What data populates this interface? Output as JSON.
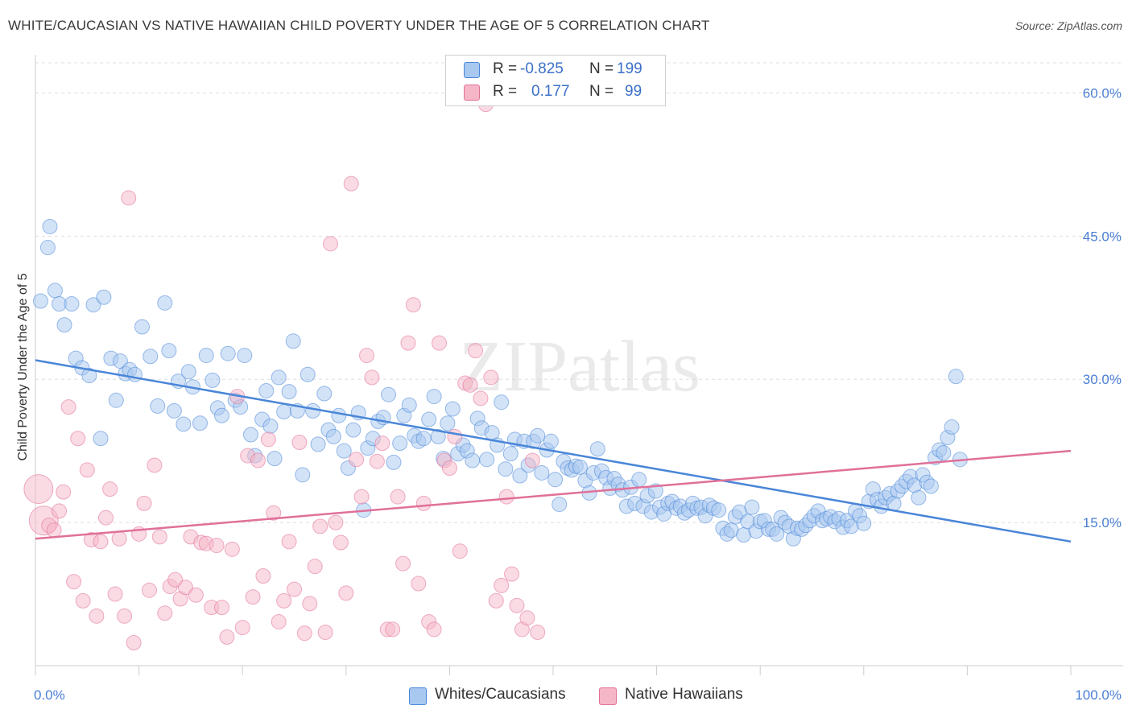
{
  "title": "WHITE/CAUCASIAN VS NATIVE HAWAIIAN CHILD POVERTY UNDER THE AGE OF 5 CORRELATION CHART",
  "source": "Source: ZipAtlas.com",
  "watermark": "ZIPatlas",
  "legend": {
    "rows": [
      {
        "r_label": "R =",
        "r_value": "-0.825",
        "n_label": "N =",
        "n_value": "199",
        "color": "#a8c8f0"
      },
      {
        "r_label": "R =",
        "r_value": "0.177",
        "n_label": "N =",
        "n_value": "99",
        "color": "#f5b6c8"
      }
    ]
  },
  "bottom_legend": [
    {
      "label": "Whites/Caucasians",
      "color": "#a8c8f0"
    },
    {
      "label": "Native Hawaiians",
      "color": "#f5b6c8"
    }
  ],
  "chart_data": {
    "type": "scatter",
    "title": "WHITE/CAUCASIAN VS NATIVE HAWAIIAN CHILD POVERTY UNDER THE AGE OF 5 CORRELATION CHART",
    "xlabel": "",
    "ylabel": "Child Poverty Under the Age of 5",
    "xlim": [
      0,
      100
    ],
    "ylim": [
      0,
      64
    ],
    "x_tick_labels": [
      "0.0%",
      "100.0%"
    ],
    "y_ticks": [
      15,
      30,
      45,
      60
    ],
    "y_tick_labels": [
      "15.0%",
      "30.0%",
      "45.0%",
      "60.0%"
    ],
    "grid": true,
    "series": [
      {
        "name": "Whites/Caucasians",
        "color": "#4a86d8",
        "fill": "#a8c8f0",
        "trend": {
          "x": [
            0,
            100
          ],
          "y": [
            32.0,
            13.0
          ]
        },
        "points": [
          [
            0.5,
            38.2
          ],
          [
            1.2,
            43.8
          ],
          [
            1.4,
            46.0
          ],
          [
            1.9,
            39.3
          ],
          [
            2.3,
            37.9
          ],
          [
            2.8,
            35.7
          ],
          [
            3.5,
            37.9
          ],
          [
            3.9,
            32.2
          ],
          [
            4.5,
            31.2
          ],
          [
            5.2,
            30.4
          ],
          [
            5.6,
            37.8
          ],
          [
            6.3,
            23.8
          ],
          [
            6.6,
            38.6
          ],
          [
            7.3,
            32.2
          ],
          [
            7.8,
            27.8
          ],
          [
            8.2,
            31.9
          ],
          [
            8.7,
            30.6
          ],
          [
            9.1,
            31.0
          ],
          [
            9.6,
            30.5
          ],
          [
            10.3,
            35.5
          ],
          [
            11.1,
            32.4
          ],
          [
            11.8,
            27.2
          ],
          [
            12.5,
            38.0
          ],
          [
            12.9,
            33.0
          ],
          [
            13.4,
            26.7
          ],
          [
            13.8,
            29.8
          ],
          [
            14.3,
            25.3
          ],
          [
            14.8,
            30.8
          ],
          [
            15.2,
            29.2
          ],
          [
            15.9,
            25.4
          ],
          [
            16.5,
            32.5
          ],
          [
            17.1,
            29.9
          ],
          [
            17.6,
            27.0
          ],
          [
            18.0,
            26.2
          ],
          [
            18.6,
            32.7
          ],
          [
            19.3,
            27.8
          ],
          [
            19.8,
            27.1
          ],
          [
            20.2,
            32.5
          ],
          [
            20.8,
            24.2
          ],
          [
            21.2,
            22.0
          ],
          [
            21.9,
            25.8
          ],
          [
            22.3,
            28.8
          ],
          [
            22.7,
            25.1
          ],
          [
            23.1,
            21.7
          ],
          [
            23.5,
            30.2
          ],
          [
            24.0,
            26.6
          ],
          [
            24.5,
            28.7
          ],
          [
            24.9,
            34.0
          ],
          [
            25.3,
            26.7
          ],
          [
            25.8,
            20.0
          ],
          [
            26.3,
            30.5
          ],
          [
            26.8,
            26.7
          ],
          [
            27.3,
            23.2
          ],
          [
            27.9,
            28.5
          ],
          [
            28.3,
            24.7
          ],
          [
            28.8,
            24.0
          ],
          [
            29.3,
            26.2
          ],
          [
            29.8,
            22.5
          ],
          [
            30.2,
            20.7
          ],
          [
            30.7,
            24.7
          ],
          [
            31.2,
            26.5
          ],
          [
            31.7,
            16.3
          ],
          [
            32.1,
            22.8
          ],
          [
            32.6,
            23.8
          ],
          [
            33.1,
            25.6
          ],
          [
            33.6,
            26.0
          ],
          [
            34.1,
            28.4
          ],
          [
            34.6,
            21.3
          ],
          [
            35.2,
            23.3
          ],
          [
            35.6,
            26.2
          ],
          [
            36.1,
            27.3
          ],
          [
            36.6,
            24.1
          ],
          [
            37.0,
            23.5
          ],
          [
            37.5,
            23.8
          ],
          [
            38.0,
            25.8
          ],
          [
            38.5,
            28.2
          ],
          [
            38.9,
            24.0
          ],
          [
            39.4,
            21.7
          ],
          [
            39.8,
            25.4
          ],
          [
            40.3,
            26.9
          ],
          [
            40.8,
            22.2
          ],
          [
            41.3,
            23.1
          ],
          [
            41.7,
            22.5
          ],
          [
            42.2,
            21.5
          ],
          [
            42.7,
            25.9
          ],
          [
            43.1,
            24.9
          ],
          [
            43.6,
            21.6
          ],
          [
            44.1,
            24.4
          ],
          [
            44.6,
            23.1
          ],
          [
            45.0,
            27.6
          ],
          [
            45.4,
            20.6
          ],
          [
            45.9,
            22.2
          ],
          [
            46.3,
            23.7
          ],
          [
            46.8,
            19.9
          ],
          [
            47.2,
            23.5
          ],
          [
            47.6,
            21.0
          ],
          [
            48.1,
            23.5
          ],
          [
            48.5,
            24.1
          ],
          [
            48.9,
            20.2
          ],
          [
            49.4,
            22.6
          ],
          [
            49.8,
            23.5
          ],
          [
            50.2,
            19.5
          ],
          [
            50.6,
            16.9
          ],
          [
            51.0,
            21.4
          ],
          [
            51.4,
            20.7
          ],
          [
            51.8,
            20.5
          ],
          [
            52.2,
            20.9
          ],
          [
            52.6,
            20.8
          ],
          [
            53.1,
            19.4
          ],
          [
            53.5,
            18.1
          ],
          [
            53.9,
            20.2
          ],
          [
            54.3,
            22.7
          ],
          [
            54.7,
            20.4
          ],
          [
            55.1,
            19.7
          ],
          [
            55.5,
            18.6
          ],
          [
            55.9,
            19.6
          ],
          [
            56.3,
            19.0
          ],
          [
            56.7,
            18.4
          ],
          [
            57.1,
            16.7
          ],
          [
            57.5,
            18.7
          ],
          [
            57.9,
            17.0
          ],
          [
            58.3,
            19.5
          ],
          [
            58.7,
            16.7
          ],
          [
            59.1,
            17.8
          ],
          [
            59.5,
            16.1
          ],
          [
            59.9,
            18.3
          ],
          [
            60.3,
            16.6
          ],
          [
            60.7,
            15.9
          ],
          [
            61.1,
            17.0
          ],
          [
            61.5,
            17.2
          ],
          [
            61.9,
            16.5
          ],
          [
            62.3,
            16.7
          ],
          [
            62.7,
            16.0
          ],
          [
            63.1,
            16.3
          ],
          [
            63.5,
            17.0
          ],
          [
            63.9,
            16.5
          ],
          [
            64.3,
            16.6
          ],
          [
            64.7,
            15.7
          ],
          [
            65.1,
            16.8
          ],
          [
            65.5,
            16.5
          ],
          [
            66.0,
            16.3
          ],
          [
            66.4,
            14.4
          ],
          [
            66.8,
            13.8
          ],
          [
            67.2,
            14.2
          ],
          [
            67.6,
            15.6
          ],
          [
            68.0,
            16.1
          ],
          [
            68.4,
            13.7
          ],
          [
            68.8,
            15.1
          ],
          [
            69.2,
            16.6
          ],
          [
            69.6,
            14.1
          ],
          [
            70.0,
            15.1
          ],
          [
            70.4,
            15.2
          ],
          [
            70.8,
            14.3
          ],
          [
            71.2,
            14.3
          ],
          [
            71.6,
            13.8
          ],
          [
            72.0,
            15.5
          ],
          [
            72.4,
            15.0
          ],
          [
            72.8,
            14.6
          ],
          [
            73.2,
            13.3
          ],
          [
            73.6,
            14.4
          ],
          [
            74.0,
            14.3
          ],
          [
            74.4,
            14.7
          ],
          [
            74.8,
            15.2
          ],
          [
            75.2,
            15.7
          ],
          [
            75.6,
            16.2
          ],
          [
            76.0,
            15.2
          ],
          [
            76.4,
            15.4
          ],
          [
            76.8,
            15.6
          ],
          [
            77.2,
            15.1
          ],
          [
            77.6,
            15.4
          ],
          [
            78.0,
            14.5
          ],
          [
            78.4,
            15.2
          ],
          [
            78.8,
            14.6
          ],
          [
            79.2,
            16.2
          ],
          [
            79.6,
            15.7
          ],
          [
            80.0,
            14.9
          ],
          [
            80.5,
            17.2
          ],
          [
            80.9,
            18.5
          ],
          [
            81.3,
            17.4
          ],
          [
            81.7,
            16.7
          ],
          [
            82.1,
            17.6
          ],
          [
            82.5,
            18.0
          ],
          [
            82.9,
            17.0
          ],
          [
            83.3,
            18.3
          ],
          [
            83.7,
            18.8
          ],
          [
            84.1,
            19.3
          ],
          [
            84.5,
            19.8
          ],
          [
            84.9,
            18.9
          ],
          [
            85.3,
            17.6
          ],
          [
            85.7,
            20.0
          ],
          [
            86.1,
            19.2
          ],
          [
            86.5,
            18.8
          ],
          [
            86.9,
            21.8
          ],
          [
            87.3,
            22.6
          ],
          [
            87.7,
            22.3
          ],
          [
            88.1,
            23.9
          ],
          [
            88.5,
            25.0
          ],
          [
            88.9,
            30.3
          ],
          [
            89.3,
            21.6
          ]
        ]
      },
      {
        "name": "Native Hawaiians",
        "color": "#e07099",
        "fill": "#f5b6c8",
        "trend": {
          "x": [
            0,
            100
          ],
          "y": [
            13.3,
            22.5
          ]
        },
        "points": [
          [
            0.3,
            18.5
          ],
          [
            0.8,
            15.2
          ],
          [
            1.3,
            14.7
          ],
          [
            1.8,
            14.2
          ],
          [
            2.3,
            16.2
          ],
          [
            2.7,
            18.2
          ],
          [
            3.2,
            27.1
          ],
          [
            3.7,
            8.8
          ],
          [
            4.1,
            23.8
          ],
          [
            4.6,
            6.8
          ],
          [
            5.0,
            20.5
          ],
          [
            5.4,
            13.2
          ],
          [
            5.9,
            5.2
          ],
          [
            6.3,
            13.0
          ],
          [
            6.8,
            15.5
          ],
          [
            7.2,
            18.5
          ],
          [
            7.7,
            7.5
          ],
          [
            8.1,
            13.3
          ],
          [
            8.6,
            5.2
          ],
          [
            9.0,
            49.0
          ],
          [
            9.5,
            2.4
          ],
          [
            10.0,
            13.8
          ],
          [
            10.5,
            17.0
          ],
          [
            11.0,
            7.9
          ],
          [
            11.5,
            21.0
          ],
          [
            12.0,
            13.5
          ],
          [
            12.5,
            5.5
          ],
          [
            13.0,
            8.3
          ],
          [
            13.5,
            9.0
          ],
          [
            14.0,
            7.0
          ],
          [
            14.5,
            8.2
          ],
          [
            15.0,
            13.5
          ],
          [
            15.5,
            7.4
          ],
          [
            16.0,
            12.9
          ],
          [
            16.5,
            12.8
          ],
          [
            17.0,
            6.1
          ],
          [
            17.5,
            12.6
          ],
          [
            18.0,
            6.1
          ],
          [
            18.5,
            3.0
          ],
          [
            19.0,
            12.2
          ],
          [
            19.5,
            28.2
          ],
          [
            20.0,
            4.0
          ],
          [
            20.5,
            22.0
          ],
          [
            21.0,
            7.2
          ],
          [
            21.5,
            21.5
          ],
          [
            22.0,
            9.4
          ],
          [
            22.5,
            23.7
          ],
          [
            23.0,
            16.0
          ],
          [
            23.5,
            4.6
          ],
          [
            24.0,
            6.8
          ],
          [
            24.5,
            13.0
          ],
          [
            25.0,
            8.0
          ],
          [
            25.5,
            23.4
          ],
          [
            26.0,
            3.4
          ],
          [
            26.5,
            6.5
          ],
          [
            27.0,
            10.4
          ],
          [
            27.5,
            14.6
          ],
          [
            28.0,
            3.5
          ],
          [
            28.5,
            44.2
          ],
          [
            29.0,
            15.0
          ],
          [
            29.5,
            12.9
          ],
          [
            30.0,
            7.6
          ],
          [
            30.5,
            50.5
          ],
          [
            31.0,
            21.6
          ],
          [
            31.5,
            17.7
          ],
          [
            32.0,
            32.5
          ],
          [
            32.5,
            30.2
          ],
          [
            33.0,
            21.4
          ],
          [
            33.5,
            23.3
          ],
          [
            34.0,
            3.8
          ],
          [
            34.5,
            3.8
          ],
          [
            35.0,
            17.7
          ],
          [
            35.5,
            10.7
          ],
          [
            36.0,
            33.8
          ],
          [
            36.5,
            37.8
          ],
          [
            37.0,
            8.6
          ],
          [
            37.5,
            17.0
          ],
          [
            38.0,
            4.6
          ],
          [
            38.5,
            3.8
          ],
          [
            39.0,
            33.8
          ],
          [
            39.5,
            21.5
          ],
          [
            40.0,
            20.7
          ],
          [
            40.5,
            24.0
          ],
          [
            41.0,
            12.0
          ],
          [
            41.5,
            29.6
          ],
          [
            42.0,
            29.4
          ],
          [
            42.5,
            33.0
          ],
          [
            43.0,
            28.0
          ],
          [
            43.5,
            58.8
          ],
          [
            44.0,
            30.2
          ],
          [
            44.5,
            6.8
          ],
          [
            45.0,
            8.4
          ],
          [
            45.5,
            17.7
          ],
          [
            46.0,
            9.6
          ],
          [
            46.5,
            6.3
          ],
          [
            47.0,
            3.8
          ],
          [
            47.5,
            5.0
          ],
          [
            48.0,
            21.5
          ],
          [
            48.5,
            3.5
          ]
        ]
      }
    ]
  }
}
